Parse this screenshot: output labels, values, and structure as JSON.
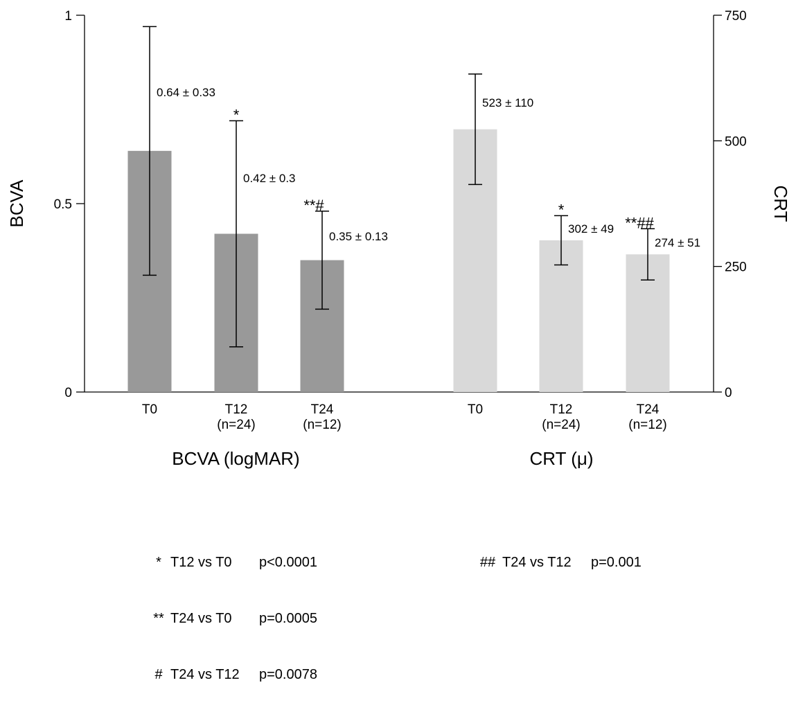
{
  "chart_data": {
    "type": "bar",
    "left_axis": {
      "label": "BCVA",
      "ticks": [
        "1",
        "0.5",
        "0"
      ],
      "ylim": [
        0,
        1
      ]
    },
    "right_axis": {
      "label": "CRT",
      "ticks": [
        "750",
        "500",
        "250",
        "0"
      ],
      "ylim": [
        0,
        750
      ]
    },
    "groups": [
      {
        "name": "BCVA (logMAR)",
        "axis": "left",
        "color": "#999999",
        "categories": [
          {
            "label": "T0",
            "n_label": ""
          },
          {
            "label": "T12",
            "n_label": "(n=24)"
          },
          {
            "label": "T24",
            "n_label": "(n=12)"
          }
        ],
        "values": [
          0.64,
          0.42,
          0.35
        ],
        "sd": [
          0.33,
          0.3,
          0.13
        ],
        "value_labels": [
          "0.64 ± 0.33",
          "0.42 ± 0.3",
          "0.35 ± 0.13"
        ],
        "significance": [
          "",
          "*",
          "**#"
        ]
      },
      {
        "name": "CRT (μ)",
        "axis": "right",
        "color": "#d9d9d9",
        "categories": [
          {
            "label": "T0",
            "n_label": ""
          },
          {
            "label": "T12",
            "n_label": "(n=24)"
          },
          {
            "label": "T24",
            "n_label": "(n=12)"
          }
        ],
        "values": [
          523,
          302,
          274
        ],
        "sd": [
          110,
          49,
          51
        ],
        "value_labels": [
          "523 ± 110",
          "302 ± 49",
          "274 ± 51"
        ],
        "significance": [
          "",
          "*",
          "**##"
        ]
      }
    ]
  },
  "legend": {
    "left": [
      {
        "symbol": "*",
        "comparison": "T12 vs T0",
        "p": "p<0.0001"
      },
      {
        "symbol": "**",
        "comparison": "T24 vs T0",
        "p": "p=0.0005"
      },
      {
        "symbol": "#",
        "comparison": "T24 vs T12",
        "p": "p=0.0078"
      }
    ],
    "right": [
      {
        "symbol": "##",
        "comparison": "T24 vs T12",
        "p": "p=0.001"
      }
    ]
  }
}
